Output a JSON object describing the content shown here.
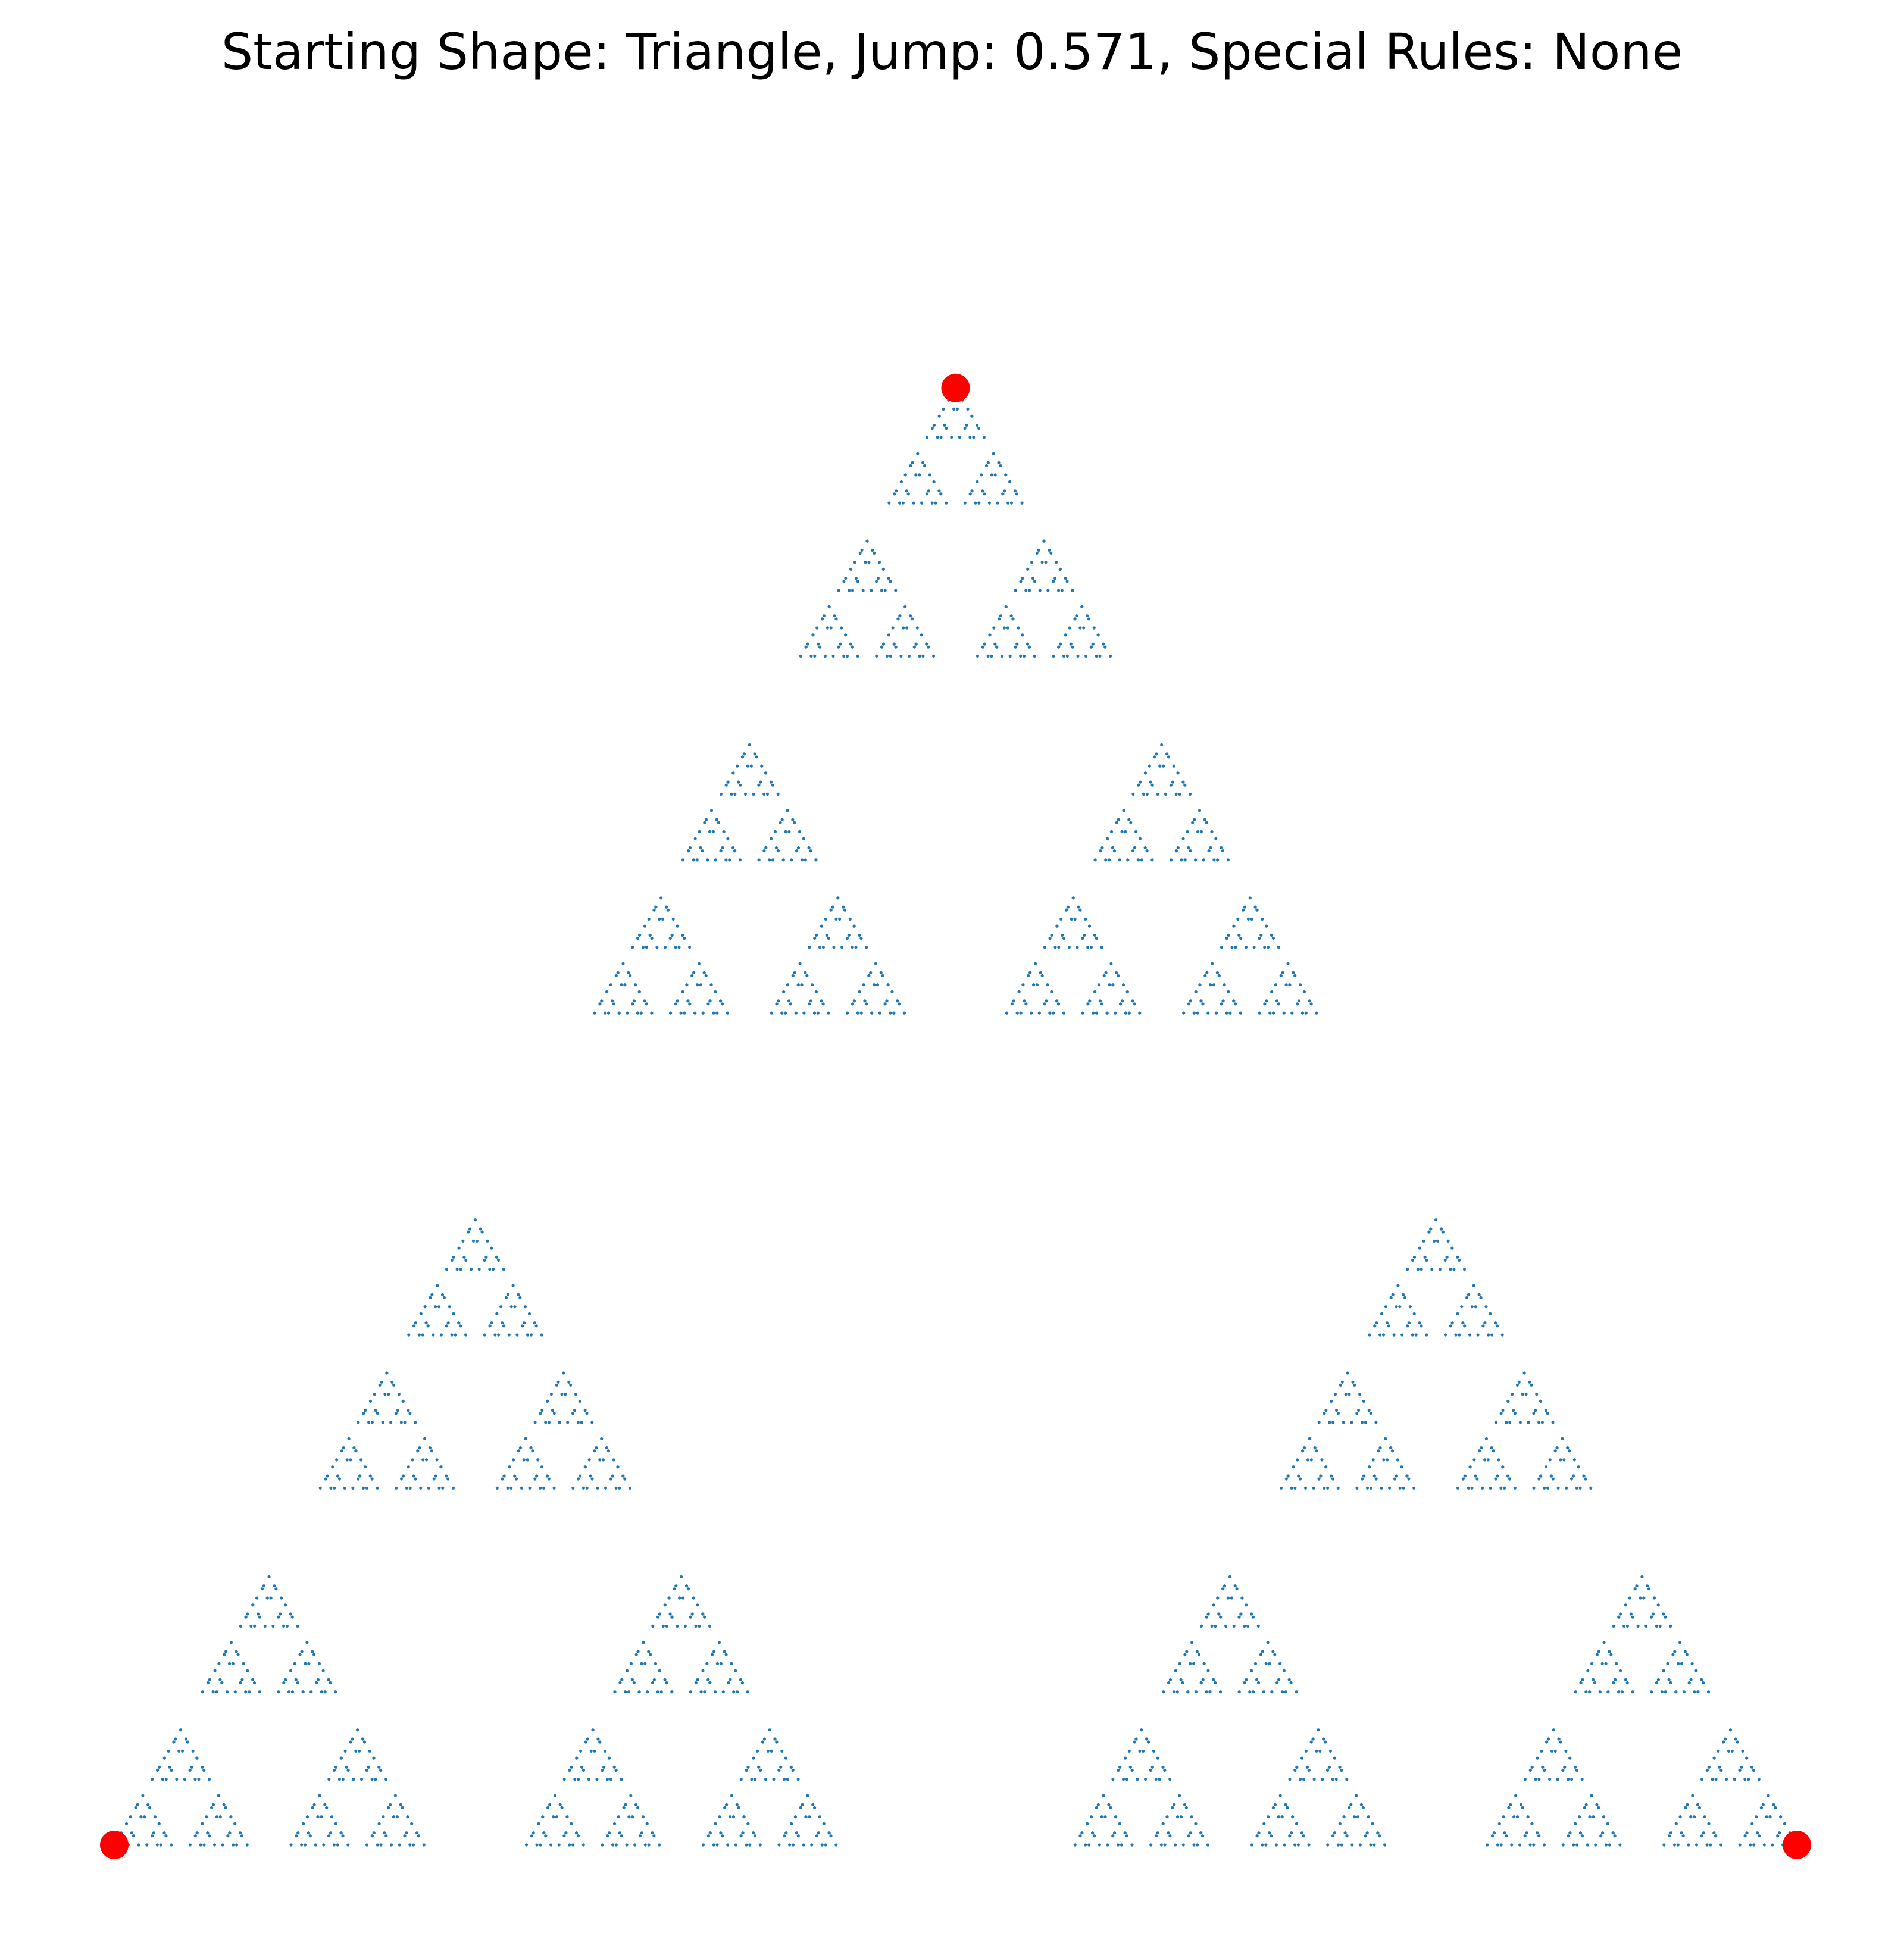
{
  "chart_data": {
    "type": "scatter",
    "title": "Starting Shape: Triangle, Jump: 0.571, Special Rules: None",
    "xlabel": "",
    "ylabel": "",
    "xlim": [
      -0.03,
      1.03
    ],
    "ylim": [
      -0.03,
      0.893
    ],
    "axes_visible": false,
    "grid": false,
    "legend": "none",
    "jump": 0.571,
    "starting_shape": "Triangle",
    "special_rules": "None",
    "fractal_depth": 6,
    "series": [
      {
        "role": "chaos-game-points",
        "color": "#1f77b4",
        "marker": "tiny-dot",
        "pattern": "Sierpinski-like fractal generated by jumping 0.571 of the distance toward a randomly chosen vertex"
      },
      {
        "role": "vertices",
        "color": "#ff0000",
        "marker": "large-dot",
        "points": [
          {
            "x": 0.0,
            "y": 0.0
          },
          {
            "x": 1.0,
            "y": 0.0
          },
          {
            "x": 0.5,
            "y": 0.866
          }
        ]
      }
    ]
  }
}
